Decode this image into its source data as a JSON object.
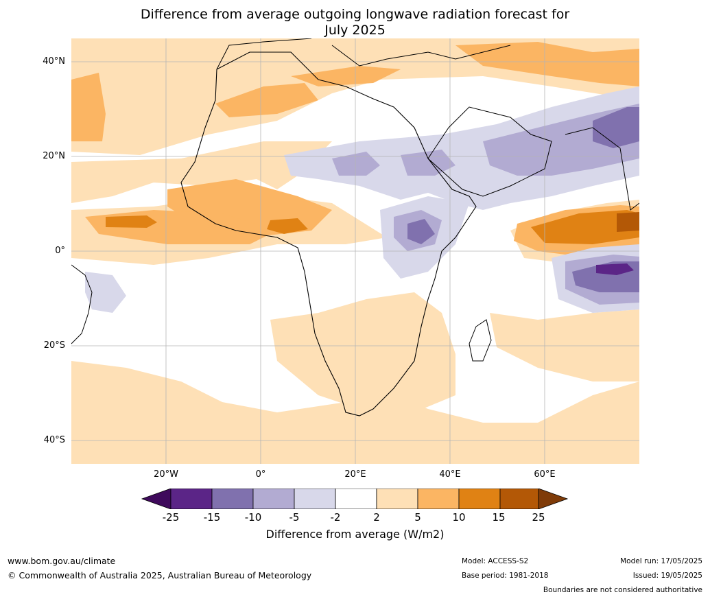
{
  "title_line1": "Difference from average outgoing longwave radiation forecast for",
  "title_line2": "July 2025",
  "lat_labels": [
    "40°N",
    "20°N",
    "0°",
    "20°S",
    "40°S"
  ],
  "lon_labels": [
    "20°W",
    "0°",
    "20°E",
    "40°E",
    "60°E"
  ],
  "colorbar": {
    "ticks": [
      "-25",
      "-15",
      "-10",
      "-5",
      "-2",
      "2",
      "5",
      "10",
      "15",
      "25"
    ],
    "colors": [
      "#3f0a5c",
      "#5b2587",
      "#8071ae",
      "#b2abd2",
      "#d8d8ea",
      "#ffffff",
      "#fee0b6",
      "#fbb563",
      "#e08214",
      "#b35806",
      "#7f3b08"
    ],
    "title": "Difference from average (W/m2)"
  },
  "footer": {
    "url": "www.bom.gov.au/climate",
    "copyright": "© Commonwealth of Australia 2025, Australian Bureau of Meteorology",
    "model": "Model: ACCESS-S2",
    "base_period": "Base period: 1981-2018",
    "model_run": "Model run: 17/05/2025",
    "issued": "Issued: 19/05/2025",
    "disclaimer": "Boundaries are not considered authoritative"
  }
}
